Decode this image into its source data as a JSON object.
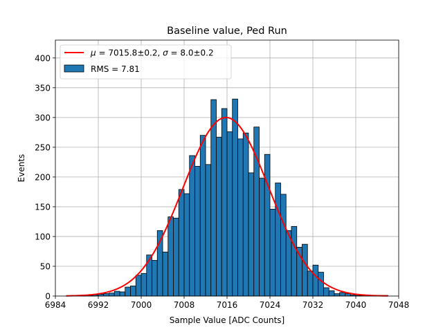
{
  "chart_data": {
    "type": "bar",
    "title": "Baseline value, Ped Run",
    "xlabel": "Sample Value [ADC Counts]",
    "ylabel": "Events",
    "xlim": [
      6984,
      7048
    ],
    "ylim": [
      0,
      430
    ],
    "xticks": [
      6984,
      6992,
      7000,
      7008,
      7016,
      7024,
      7032,
      7040,
      7048
    ],
    "yticks": [
      0,
      50,
      100,
      150,
      200,
      250,
      300,
      350,
      400
    ],
    "grid": true,
    "legend_position": "top-left",
    "bin_width": 1,
    "histogram": {
      "name": "RMS = 7.81",
      "color": "#1f77b4",
      "edge_color": "#000000",
      "bin_left_edges": [
        6987,
        6988,
        6989,
        6990,
        6991,
        6992,
        6993,
        6994,
        6995,
        6996,
        6997,
        6998,
        6999,
        7000,
        7001,
        7002,
        7003,
        7004,
        7005,
        7006,
        7007,
        7008,
        7009,
        7010,
        7011,
        7012,
        7013,
        7014,
        7015,
        7016,
        7017,
        7018,
        7019,
        7020,
        7021,
        7022,
        7023,
        7024,
        7025,
        7026,
        7027,
        7028,
        7029,
        7030,
        7031,
        7032,
        7033,
        7034,
        7035,
        7036,
        7037,
        7038,
        7039,
        7040,
        7041,
        7042,
        7043,
        7044,
        7045
      ],
      "counts": [
        1,
        1,
        1,
        1,
        2,
        3,
        4,
        5,
        8,
        7,
        15,
        17,
        35,
        38,
        69,
        60,
        110,
        74,
        133,
        131,
        179,
        172,
        236,
        218,
        270,
        221,
        330,
        267,
        315,
        276,
        331,
        264,
        274,
        207,
        284,
        198,
        238,
        146,
        190,
        171,
        110,
        117,
        82,
        87,
        42,
        52,
        40,
        14,
        9,
        4,
        6,
        4,
        2,
        1,
        1,
        1,
        1,
        1,
        1
      ]
    },
    "fit": {
      "name": "μ = 7015.8±0.2, σ = 8.0±0.2",
      "legend_mu_label": "μ",
      "legend_mu_text": " = 7015.8±0.2, ",
      "legend_sigma_label": "σ",
      "legend_sigma_text": " = 8.0±0.2",
      "color": "#ff0000",
      "mu": 7015.8,
      "sigma": 8.0,
      "amplitude": 300,
      "x_range": [
        6986,
        7046
      ]
    }
  }
}
